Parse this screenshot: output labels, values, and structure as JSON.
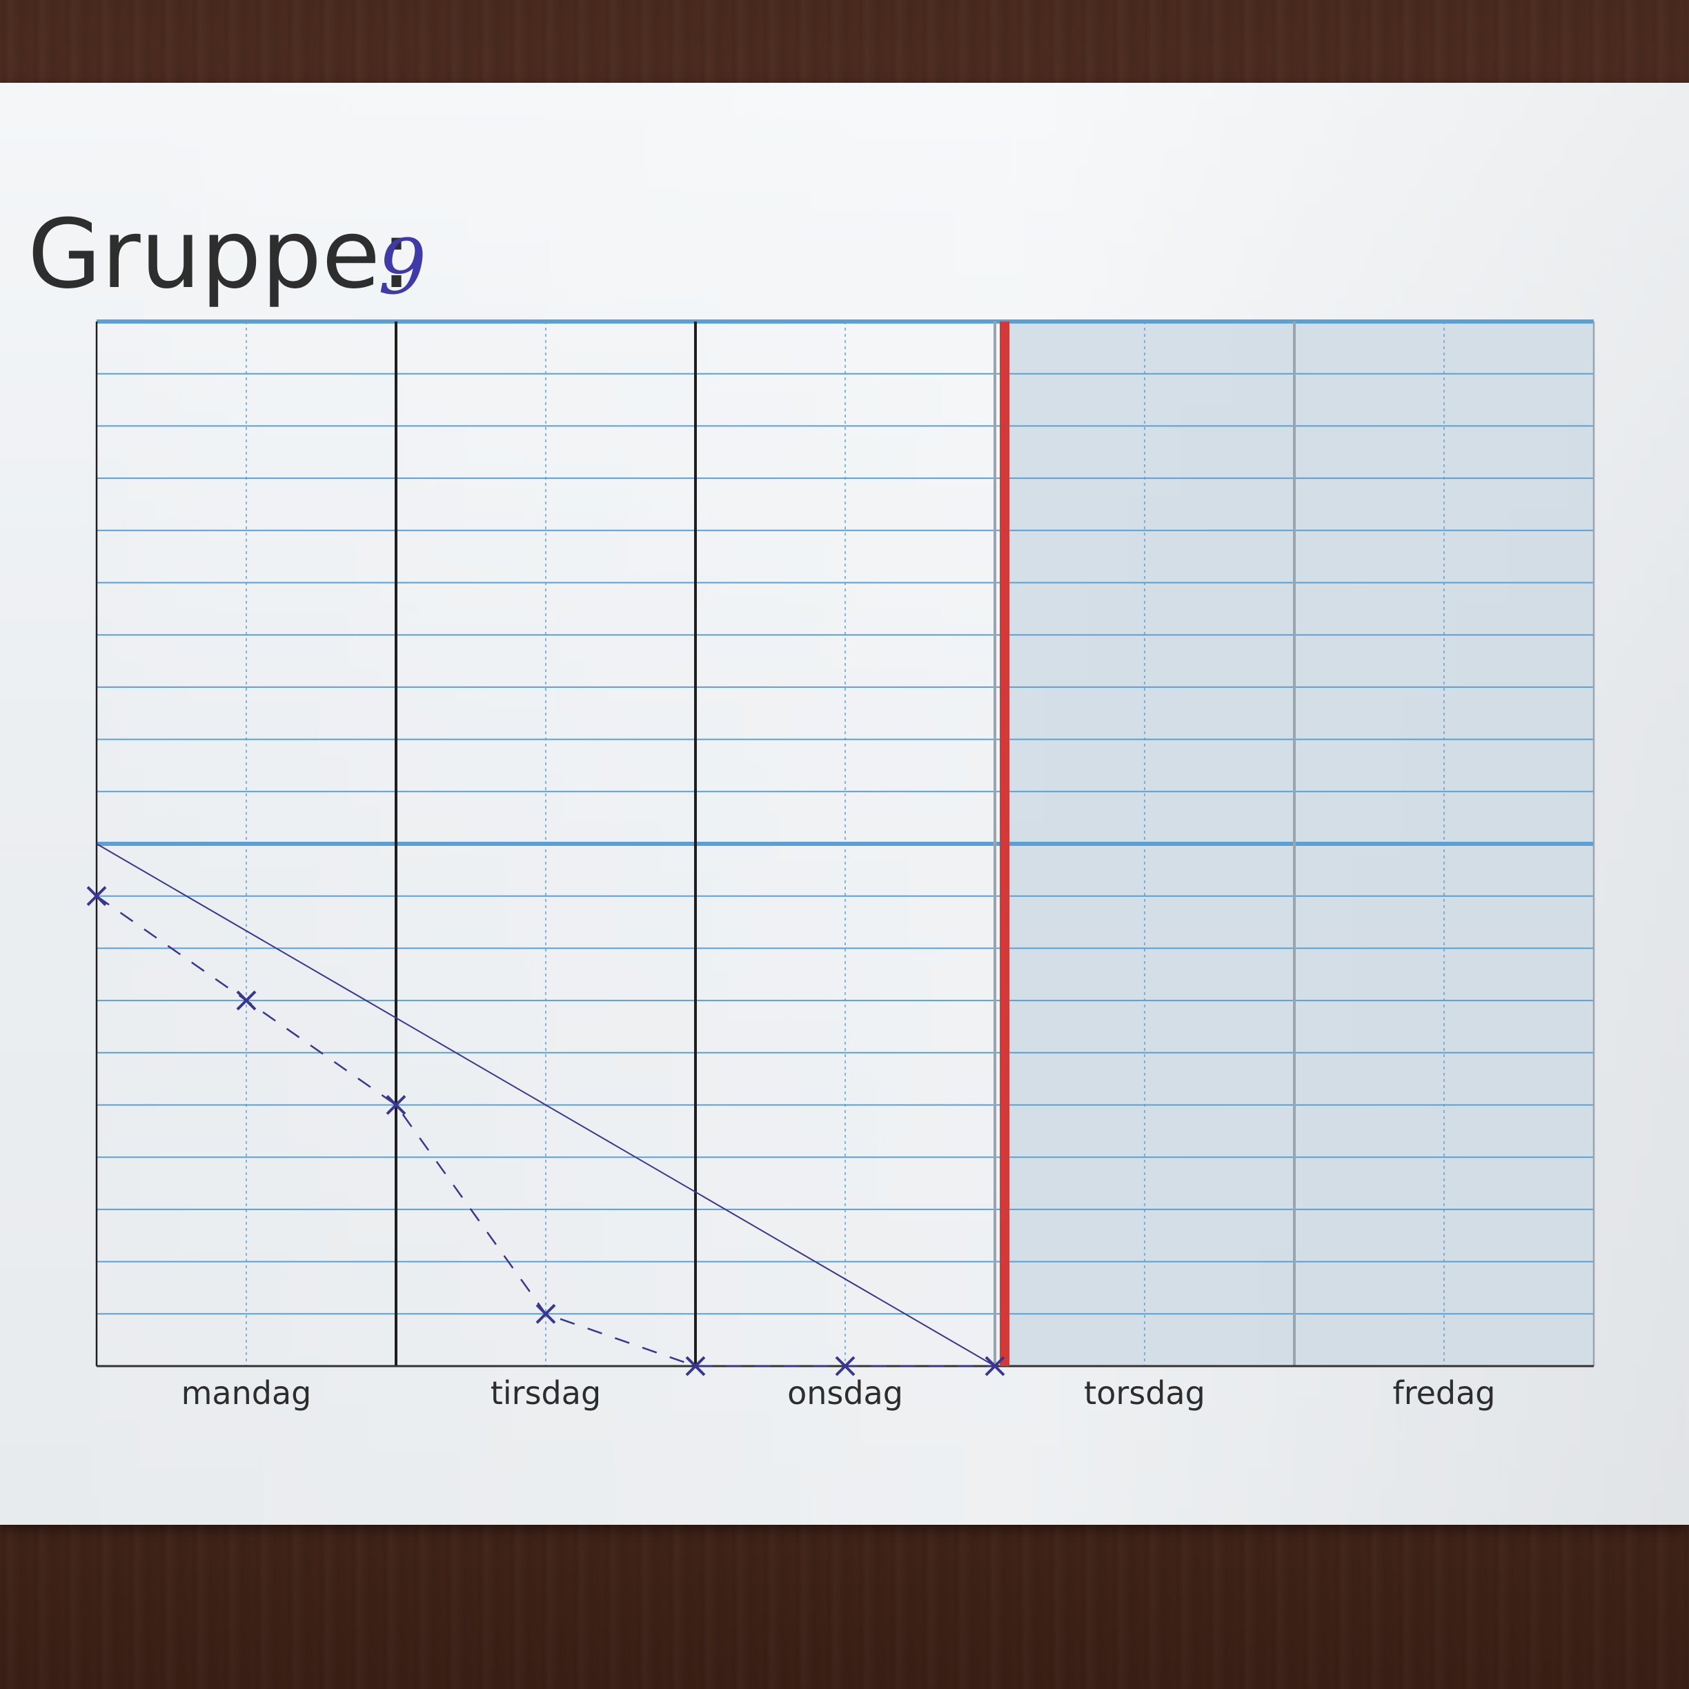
{
  "title": {
    "label": "Gruppe:",
    "value": "9"
  },
  "days": [
    "mandag",
    "tirsdag",
    "onsdag",
    "torsdag",
    "fredag"
  ],
  "colors": {
    "paper": "#eceff2",
    "grid_lines": "#5aa0d6",
    "day_dividers": "#1e1e1e",
    "today_marker": "#d23a3a",
    "future_shading": "#cfdae4",
    "ink": "#3a3690"
  },
  "chart_data": {
    "type": "line",
    "x_categories": [
      "mandag",
      "tirsdag",
      "onsdag",
      "torsdag",
      "fredag"
    ],
    "x_range": [
      0,
      5
    ],
    "y_range": [
      -10,
      10
    ],
    "grid": true,
    "series": [
      {
        "style": "solid",
        "x": [
          0,
          3
        ],
        "y": [
          0,
          -10
        ]
      },
      {
        "style": "dashed",
        "markers": "x",
        "x": [
          0,
          0.5,
          1,
          1.5,
          2,
          2.5,
          3
        ],
        "y": [
          -1,
          -3,
          -5,
          -9,
          -10,
          -10,
          -10
        ]
      }
    ],
    "today_marker_x": 3,
    "shaded_future_from_x": 3
  }
}
